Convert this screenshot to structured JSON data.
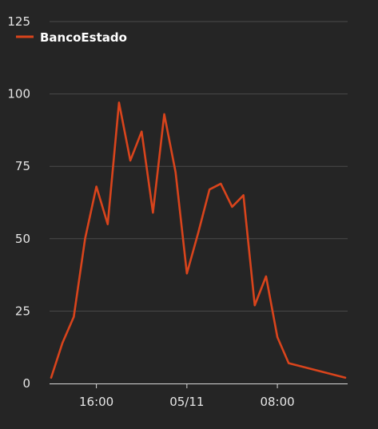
{
  "chart_data": {
    "type": "line",
    "series": [
      {
        "name": "BancoEstado",
        "color": "#d9441c",
        "x": [
          "2015-05-10T12:00",
          "2015-05-10T13:00",
          "2015-05-10T14:00",
          "2015-05-10T15:00",
          "2015-05-10T16:00",
          "2015-05-10T17:00",
          "2015-05-10T18:00",
          "2015-05-10T19:00",
          "2015-05-10T20:00",
          "2015-05-10T21:00",
          "2015-05-10T22:00",
          "2015-05-10T23:00",
          "2015-05-11T00:00",
          "2015-05-11T01:00",
          "2015-05-11T02:00",
          "2015-05-11T03:00",
          "2015-05-11T04:00",
          "2015-05-11T05:00",
          "2015-05-11T06:00",
          "2015-05-11T07:00",
          "2015-05-11T08:00",
          "2015-05-11T09:00",
          "2015-05-11T10:00",
          "2015-05-11T11:00",
          "2015-05-11T12:00",
          "2015-05-11T13:00",
          "2015-05-11T14:00"
        ],
        "values": [
          2,
          14,
          23,
          50,
          68,
          55,
          97,
          77,
          87,
          59,
          93,
          73,
          38,
          52,
          67,
          69,
          61,
          65,
          27,
          37,
          16,
          7,
          6,
          5,
          4,
          3,
          2
        ]
      }
    ],
    "ylim": [
      0,
      125
    ],
    "yticks": [
      0,
      25,
      50,
      75,
      100,
      125
    ],
    "xticks": [
      {
        "x": "2015-05-10T16:00",
        "label": "16:00"
      },
      {
        "x": "2015-05-11T00:00",
        "label": "05/11"
      },
      {
        "x": "2015-05-11T08:00",
        "label": "08:00"
      }
    ],
    "grid": true,
    "legend": "top-left"
  }
}
